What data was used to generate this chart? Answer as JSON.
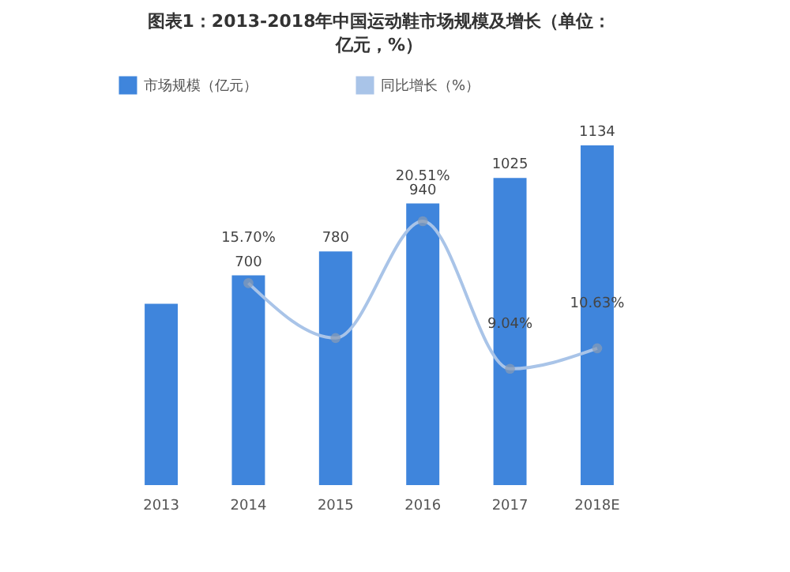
{
  "chart_data": {
    "type": "bar",
    "title": "图表1：2013-2018年中国运动鞋市场规模及增长（单位：亿元，%）",
    "categories": [
      "2013",
      "2014",
      "2015",
      "2016",
      "2017",
      "2018E"
    ],
    "series": [
      {
        "name": "市场规模（亿元）",
        "color": "#3f85dc",
        "values": [
          605,
          700,
          780,
          940,
          1025,
          1134
        ],
        "value_labels": [
          null,
          "700",
          "780",
          "940",
          "1025",
          "1134"
        ]
      },
      {
        "name": "同比增长（%）",
        "type": "line",
        "axis": "y2",
        "color": "#a9c4e8",
        "values": [
          null,
          15.7,
          11.43,
          20.51,
          9.04,
          10.63
        ],
        "value_labels": [
          null,
          "15.70%",
          null,
          "20.51%",
          "9.04%",
          "10.63%"
        ]
      }
    ],
    "legend": "top",
    "marker": "circle",
    "line_style": "solid",
    "tick_labels": "x"
  }
}
